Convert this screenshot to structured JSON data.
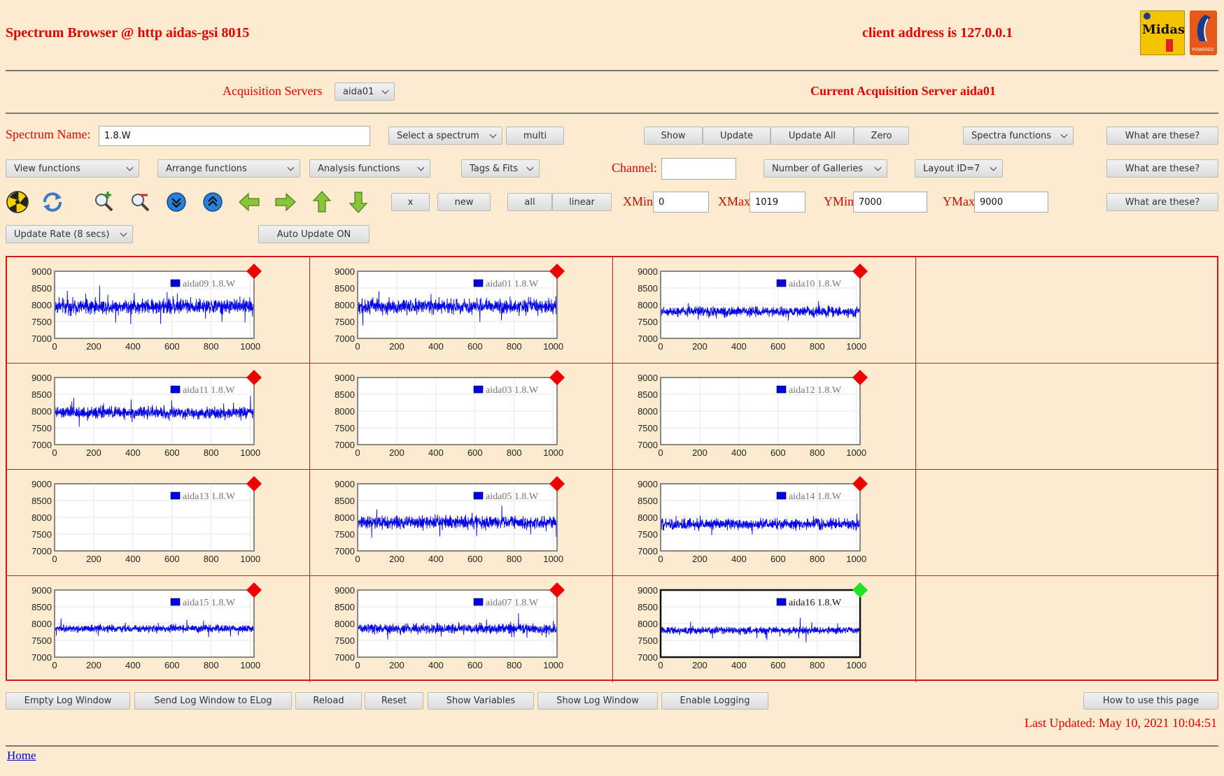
{
  "header": {
    "title": "Spectrum Browser @ http aidas-gsi 8015",
    "client": "client address is 127.0.0.1",
    "midas_logo_text": "Midas",
    "tcl_logo_text": "TCL POWERED"
  },
  "servers": {
    "label": "Acquisition Servers",
    "selected": "aida01",
    "current": "Current Acquisition Server aida01"
  },
  "row1": {
    "spectrum_name_label": "Spectrum Name:",
    "spectrum_name_value": "1.8.W",
    "select_spectrum": "Select a spectrum",
    "multi": "multi",
    "show": "Show",
    "update": "Update",
    "update_all": "Update All",
    "zero": "Zero",
    "spectra_functions": "Spectra functions",
    "what": "What are these?"
  },
  "row2": {
    "view_functions": "View functions",
    "arrange_functions": "Arrange functions",
    "analysis_functions": "Analysis functions",
    "tags_fits": "Tags & Fits",
    "channel_label": "Channel:",
    "channel_value": "",
    "number_of_galleries": "Number of Galleries",
    "layout": "Layout ID=7",
    "what": "What are these?"
  },
  "row3": {
    "x": "x",
    "new": "new",
    "all": "all",
    "linear": "linear",
    "xmin_label": "XMin",
    "xmin": "0",
    "xmax_label": "XMax",
    "xmax": "1019",
    "ymin_label": "YMin",
    "ymin": "7000",
    "ymax_label": "YMax",
    "ymax": "9000",
    "what": "What are these?"
  },
  "row4": {
    "update_rate": "Update Rate (8 secs)",
    "auto_update": "Auto Update ON"
  },
  "icons": [
    "radiation-icon",
    "refresh-icon",
    "zoom-in-icon",
    "zoom-out-icon",
    "expand-down-icon",
    "expand-up-icon",
    "arrow-left-icon",
    "arrow-right-icon",
    "arrow-up-icon",
    "arrow-down-icon"
  ],
  "chart_data": {
    "type": "line",
    "xlim": [
      0,
      1019
    ],
    "ylim": [
      7000,
      9000
    ],
    "x_ticks": [
      0,
      200,
      400,
      600,
      800,
      1000
    ],
    "y_ticks": [
      7000,
      7500,
      8000,
      8500,
      9000
    ],
    "grid": true,
    "legend_placement": "top-right",
    "series_color": "#0000ee",
    "panels": [
      {
        "legend": "aida09 1.8.W",
        "mean": 7950,
        "spread": 160,
        "has_data": true,
        "status": "red"
      },
      {
        "legend": "aida01 1.8.W",
        "mean": 7950,
        "spread": 160,
        "has_data": true,
        "status": "red"
      },
      {
        "legend": "aida10 1.8.W",
        "mean": 7800,
        "spread": 110,
        "has_data": true,
        "status": "red"
      },
      {
        "legend": "aida11 1.8.W",
        "mean": 7950,
        "spread": 130,
        "has_data": true,
        "status": "red"
      },
      {
        "legend": "aida03 1.8.W",
        "mean": 0,
        "spread": 0,
        "has_data": false,
        "status": "red"
      },
      {
        "legend": "aida12 1.8.W",
        "mean": 0,
        "spread": 0,
        "has_data": false,
        "status": "red"
      },
      {
        "legend": "aida13 1.8.W",
        "mean": 0,
        "spread": 0,
        "has_data": false,
        "status": "red"
      },
      {
        "legend": "aida05 1.8.W",
        "mean": 7850,
        "spread": 140,
        "has_data": true,
        "status": "red"
      },
      {
        "legend": "aida14 1.8.W",
        "mean": 7800,
        "spread": 120,
        "has_data": true,
        "status": "red"
      },
      {
        "legend": "aida15 1.8.W",
        "mean": 7850,
        "spread": 80,
        "has_data": true,
        "status": "red"
      },
      {
        "legend": "aida07 1.8.W",
        "mean": 7850,
        "spread": 110,
        "has_data": true,
        "status": "red"
      },
      {
        "legend": "aida16 1.8.W",
        "mean": 7800,
        "spread": 80,
        "has_data": true,
        "status": "green",
        "selected": true
      }
    ]
  },
  "bottom": {
    "empty_log": "Empty Log Window",
    "send_log": "Send Log Window to ELog",
    "reload": "Reload",
    "reset": "Reset",
    "show_variables": "Show Variables",
    "show_log": "Show Log Window",
    "enable_logging": "Enable Logging",
    "how_to": "How to use this page",
    "last_updated": "Last Updated: May 10, 2021 10:04:51",
    "home": "Home"
  }
}
